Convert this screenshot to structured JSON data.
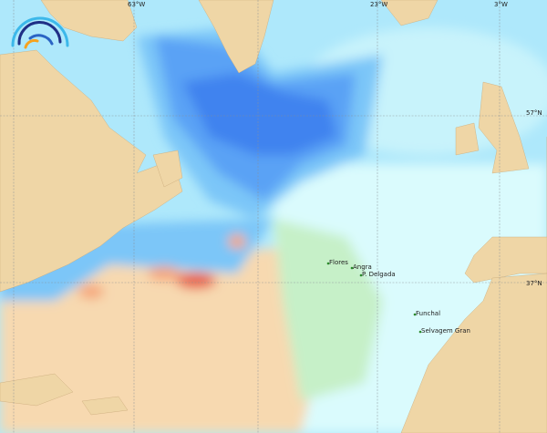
{
  "map": {
    "longitude_labels": [
      "63°W",
      "23°W",
      "3°W"
    ],
    "latitude_labels": [
      "57°N",
      "37°N"
    ],
    "places": [
      {
        "name": "Flores",
        "lon": -31.1,
        "lat": 39.45
      },
      {
        "name": "Angra",
        "lon": -27.2,
        "lat": 38.65
      },
      {
        "name": "P. Delgada",
        "lon": -25.7,
        "lat": 37.75
      },
      {
        "name": "Funchal",
        "lon": -16.9,
        "lat": 32.65
      },
      {
        "name": "Selvagem Gran",
        "lon": -15.9,
        "lat": 30.1
      }
    ],
    "colors": {
      "land": "#efd6a6",
      "ocean_cold_deep": "#3f83ef",
      "ocean_cold": "#5aa2f5",
      "ocean_cool": "#7cc6f8",
      "ocean_mild": "#aee8fb",
      "ocean_neutral": "#dafbfd",
      "ocean_warmish": "#c6f0c8",
      "ocean_warm": "#f7d9b0",
      "ocean_hot": "#f6a67a",
      "ocean_hottest": "#e8604a"
    },
    "logo_icon": "waves-arc-logo"
  }
}
